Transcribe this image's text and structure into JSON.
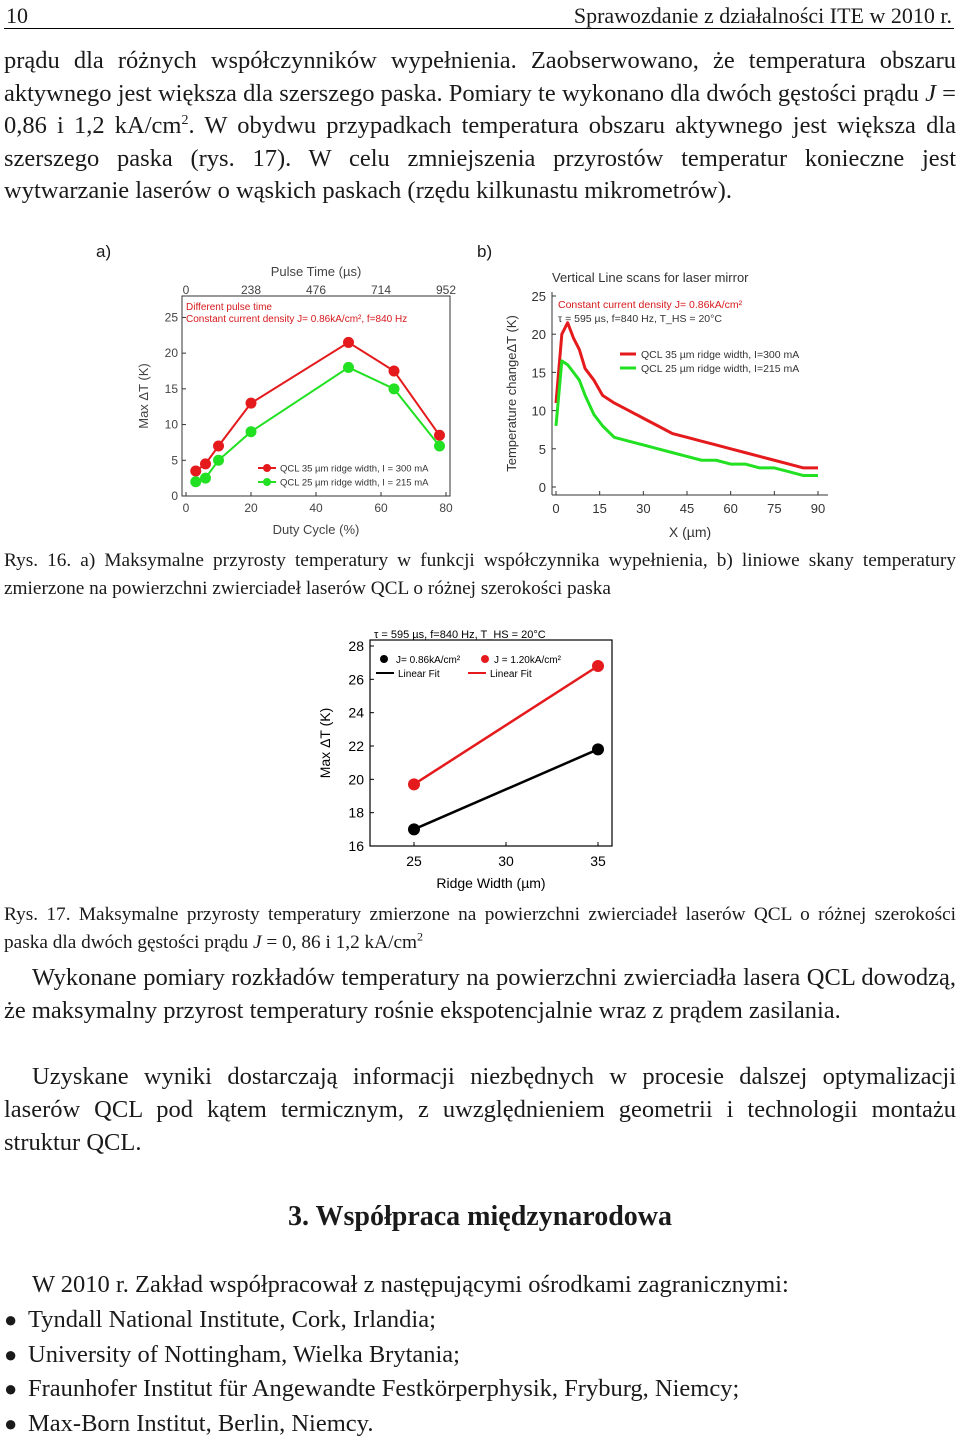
{
  "header": {
    "page_number": "10",
    "running_title": "Sprawozdanie z działalności ITE w 2010 r."
  },
  "para1": {
    "t1": "prądu dla różnych współczynników wypełnienia. Zaobserwowano, że temperatura obszaru aktywnego jest większa dla szerszego paska. Pomiary te wykonano dla dwóch gęstości prądu ",
    "var_j": "J",
    "t2": " = 0,86 i 1,2 kA/cm",
    "sup": "2",
    "t3": ". W obydwu przypadkach temperatura obszaru aktywnego jest większa dla szerszego paska (rys. 17). W celu zmniejszenia przyrostów temperatur konieczne jest wytwarzanie laserów o wąskich paskach (rzędu kilkunastu mikrometrów)."
  },
  "figure16": {
    "label_a": "a)",
    "label_b": "b)"
  },
  "chart_data": [
    {
      "type": "line",
      "panel": "a)",
      "title": "Pulse Time (µs)",
      "top_ticks": [
        "0",
        "238",
        "476",
        "714",
        "952"
      ],
      "xlabel": "Duty Cycle (%)",
      "ylabel": "Max ΔT (K)",
      "xlim": [
        0,
        80
      ],
      "ylim": [
        0,
        28
      ],
      "x_ticks": [
        "0",
        "20",
        "40",
        "60",
        "80"
      ],
      "y_ticks": [
        "0",
        "5",
        "10",
        "15",
        "20",
        "25"
      ],
      "annotations": [
        "Different pulse time",
        "Constant current density J= 0.86kA/cm², f=840 Hz"
      ],
      "series": [
        {
          "name": "QCL 35 µm ridge width, I = 300 mA",
          "color": "#e41a1c",
          "x": [
            3,
            6,
            10,
            20,
            50,
            64,
            78
          ],
          "y": [
            3.5,
            4.5,
            7,
            13,
            21.5,
            17.5,
            8.5
          ]
        },
        {
          "name": "QCL 25 µm ridge width, I = 215 mA",
          "color": "#22e022",
          "x": [
            3,
            6,
            10,
            20,
            50,
            64,
            78
          ],
          "y": [
            2,
            2.5,
            5,
            9,
            18,
            15,
            7
          ]
        }
      ]
    },
    {
      "type": "line",
      "panel": "b)",
      "title": "Vertical Line scans for laser mirror",
      "xlabel": "X (µm)",
      "ylabel": "Temperature changeΔT (K)",
      "xlim": [
        0,
        90
      ],
      "ylim": [
        0,
        25
      ],
      "x_ticks": [
        "0",
        "15",
        "30",
        "45",
        "60",
        "75",
        "90"
      ],
      "y_ticks": [
        "0",
        "5",
        "10",
        "15",
        "20",
        "25"
      ],
      "annotations": [
        "Constant current density J= 0.86kA/cm²",
        "τ = 595 µs, f=840 Hz, T_HS = 20°C"
      ],
      "series": [
        {
          "name": "QCL 35 µm ridge width, I=300 mA",
          "color": "#e41a1c",
          "x": [
            0,
            2,
            4,
            6,
            8,
            10,
            13,
            16,
            20,
            25,
            30,
            35,
            40,
            45,
            50,
            55,
            60,
            65,
            70,
            75,
            80,
            85,
            90
          ],
          "y": [
            11,
            20,
            21.5,
            19.5,
            18,
            15.5,
            14,
            12,
            11,
            10,
            9,
            8,
            7,
            6.5,
            6,
            5.5,
            5,
            4.5,
            4,
            3.5,
            3,
            2.5,
            2.5
          ]
        },
        {
          "name": "QCL 25 µm ridge width, I=215 mA",
          "color": "#22e022",
          "x": [
            0,
            2,
            4,
            6,
            8,
            10,
            13,
            16,
            20,
            25,
            30,
            35,
            40,
            45,
            50,
            55,
            60,
            65,
            70,
            75,
            80,
            85,
            90
          ],
          "y": [
            8,
            16.5,
            16,
            15,
            14,
            12,
            9.5,
            8,
            6.5,
            6,
            5.5,
            5,
            4.5,
            4,
            3.5,
            3.5,
            3,
            3,
            2.5,
            2.5,
            2,
            1.5,
            1.5
          ]
        }
      ]
    },
    {
      "type": "line",
      "title": "τ = 595 µs, f=840 Hz, T_HS = 20°C",
      "xlabel": "Ridge Width (µm)",
      "ylabel": "Max ΔT (K)",
      "xlim": [
        25,
        35
      ],
      "ylim": [
        16,
        28
      ],
      "x_ticks": [
        "25",
        "30",
        "35"
      ],
      "y_ticks": [
        "16",
        "18",
        "20",
        "22",
        "24",
        "26",
        "28"
      ],
      "legend_labels": [
        "J= 0.86kA/cm²",
        "J = 1.20kA/cm²",
        "Linear Fit",
        "Linear Fit"
      ],
      "series": [
        {
          "name": "J= 0.86kA/cm²",
          "color": "#000000",
          "x": [
            25,
            35
          ],
          "y": [
            17,
            21.8
          ]
        },
        {
          "name": "J = 1.20kA/cm²",
          "color": "#e41a1c",
          "x": [
            25,
            35
          ],
          "y": [
            19.7,
            26.8
          ]
        }
      ]
    }
  ],
  "caption16": {
    "prefix": "Rys. 16.",
    "text": " a) Maksymalne przyrosty temperatury w funkcji współczynnika wypełnienia, b) liniowe skany temperatury zmierzone na powierzchni zwierciadeł laserów QCL o różnej szerokości paska"
  },
  "caption17": {
    "prefix": "Rys. 17.",
    "text": " Maksymalne przyrosty temperatury zmierzone na powierzchni zwierciadeł laserów QCL o różnej szerokości paska dla dwóch gęstości prądu ",
    "var_j": "J",
    "text2": " = 0, 86 i 1,2 kA/cm",
    "sup": "2"
  },
  "para2": "Wykonane pomiary rozkładów temperatury na powierzchni zwierciadła lasera QCL dowodzą, że maksymalny przyrost temperatury rośnie ekspotencjalnie wraz z prądem zasilania.",
  "para3": "Uzyskane wyniki dostarczają informacji niezbędnych w procesie dalszej optymalizacji laserów QCL pod kątem termicznym, z uwzględnieniem geometrii i technologii montażu struktur QCL.",
  "section": {
    "title": "3. Współpraca międzynarodowa"
  },
  "intro": "W 2010 r. Zakład współpracował z następującymi ośrodkami zagranicznymi:",
  "institutions": [
    "Tyndall National Institute, Cork, Irlandia;",
    "University of Nottingham, Wielka Brytania;",
    "Fraunhofer Institut für Angewandte Festkörperphysik, Fryburg, Niemcy;",
    "Max-Born Institut, Berlin, Niemcy."
  ]
}
